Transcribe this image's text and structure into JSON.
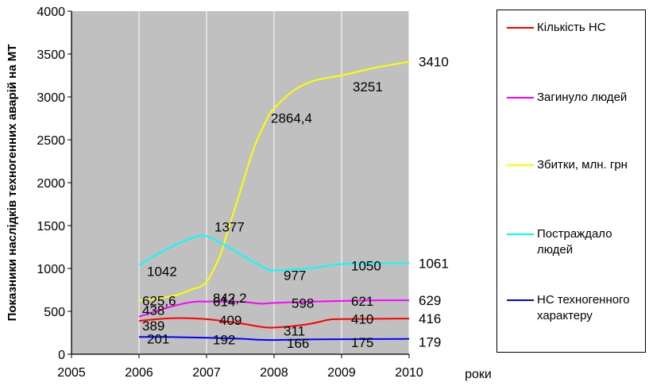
{
  "chart_data": {
    "type": "line",
    "title": "",
    "xlabel": "роки",
    "ylabel": "Показники наслідків техногенних аварій на МТ",
    "xlim": [
      2005,
      2010
    ],
    "ylim": [
      0,
      4000
    ],
    "x_ticks": [
      "2005",
      "2006",
      "2007",
      "2008",
      "2009",
      "2010"
    ],
    "y_ticks": [
      "0",
      "500",
      "1000",
      "1500",
      "2000",
      "2500",
      "3000",
      "3500",
      "4000"
    ],
    "grid": "vertical",
    "plot_background": "#c0c0c0",
    "legend_position": "right",
    "series": [
      {
        "name": "Кількість НС",
        "color": "#ff0000",
        "points": [
          [
            2006,
            389
          ],
          [
            2006.5,
            420
          ],
          [
            2007,
            409
          ],
          [
            2007.5,
            360
          ],
          [
            2007.8,
            320
          ],
          [
            2008,
            311
          ],
          [
            2008.5,
            350
          ],
          [
            2008.8,
            400
          ],
          [
            2009,
            410
          ],
          [
            2010,
            416
          ]
        ],
        "labels": [
          [
            "2006",
            "389"
          ],
          [
            "2007",
            "409"
          ],
          [
            "2008",
            "311"
          ],
          [
            "2009",
            "410"
          ],
          [
            "2010",
            "416"
          ]
        ]
      },
      {
        "name": "Загинуло людей",
        "color": "#ff00ff",
        "points": [
          [
            2006,
            438
          ],
          [
            2006.5,
            560
          ],
          [
            2006.8,
            610
          ],
          [
            2007,
            614
          ],
          [
            2007.5,
            612
          ],
          [
            2007.8,
            590
          ],
          [
            2008,
            598
          ],
          [
            2008.5,
            612
          ],
          [
            2009,
            621
          ],
          [
            2009.5,
            628
          ],
          [
            2010,
            629
          ]
        ],
        "labels": [
          [
            "2006",
            "438"
          ],
          [
            "2007",
            "614"
          ],
          [
            "2008",
            "598"
          ],
          [
            "2009",
            "621"
          ],
          [
            "2010",
            "629"
          ]
        ]
      },
      {
        "name": "Збитки, млн. грн",
        "color": "#ffff00",
        "points": [
          [
            2006,
            625.6
          ],
          [
            2006.5,
            680
          ],
          [
            2006.8,
            760
          ],
          [
            2007,
            842.2
          ],
          [
            2007.2,
            1150
          ],
          [
            2007.3,
            1400
          ],
          [
            2007.5,
            1900
          ],
          [
            2007.7,
            2400
          ],
          [
            2007.9,
            2750
          ],
          [
            2008,
            2864.4
          ],
          [
            2008.3,
            3080
          ],
          [
            2008.6,
            3190
          ],
          [
            2009,
            3251
          ],
          [
            2009.5,
            3340
          ],
          [
            2010,
            3410
          ]
        ],
        "labels": [
          [
            "2006",
            "625,6"
          ],
          [
            "2007",
            "842,2"
          ],
          [
            "2008",
            "2864,4"
          ],
          [
            "2009",
            "3251"
          ],
          [
            "2010",
            "3410"
          ]
        ]
      },
      {
        "name": "Постраждало людей",
        "color": "#00ffff",
        "points": [
          [
            2006,
            1042
          ],
          [
            2006.4,
            1220
          ],
          [
            2006.8,
            1360
          ],
          [
            2007,
            1377
          ],
          [
            2007.3,
            1260
          ],
          [
            2007.6,
            1120
          ],
          [
            2007.9,
            990
          ],
          [
            2008,
            977
          ],
          [
            2008.5,
            1000
          ],
          [
            2009,
            1050
          ],
          [
            2009.5,
            1060
          ],
          [
            2010,
            1061
          ]
        ],
        "labels": [
          [
            "2006",
            "1042"
          ],
          [
            "2007",
            "1377"
          ],
          [
            "2008",
            "977"
          ],
          [
            "2009",
            "1050"
          ],
          [
            "2010",
            "1061"
          ]
        ]
      },
      {
        "name": "НС техногенного характеру",
        "color": "#0000ff",
        "points": [
          [
            2006,
            201
          ],
          [
            2006.5,
            200
          ],
          [
            2007,
            192
          ],
          [
            2007.5,
            180
          ],
          [
            2007.8,
            168
          ],
          [
            2008,
            166
          ],
          [
            2008.5,
            172
          ],
          [
            2009,
            175
          ],
          [
            2010,
            179
          ]
        ],
        "labels": [
          [
            "2006",
            "201"
          ],
          [
            "2007",
            "192"
          ],
          [
            "2008",
            "166"
          ],
          [
            "2009",
            "175"
          ],
          [
            "2010",
            "179"
          ]
        ]
      }
    ],
    "legend": [
      {
        "text": "Кількість НС",
        "color": "#ff0000"
      },
      {
        "text": "Загинуло людей",
        "color": "#ff00ff"
      },
      {
        "text": "Збитки, млн. грн",
        "color": "#ffff00"
      },
      {
        "text": "Постраждало людей",
        "color": "#00ffff"
      },
      {
        "text": "НС техногенного характеру",
        "color": "#0000ff"
      }
    ]
  }
}
